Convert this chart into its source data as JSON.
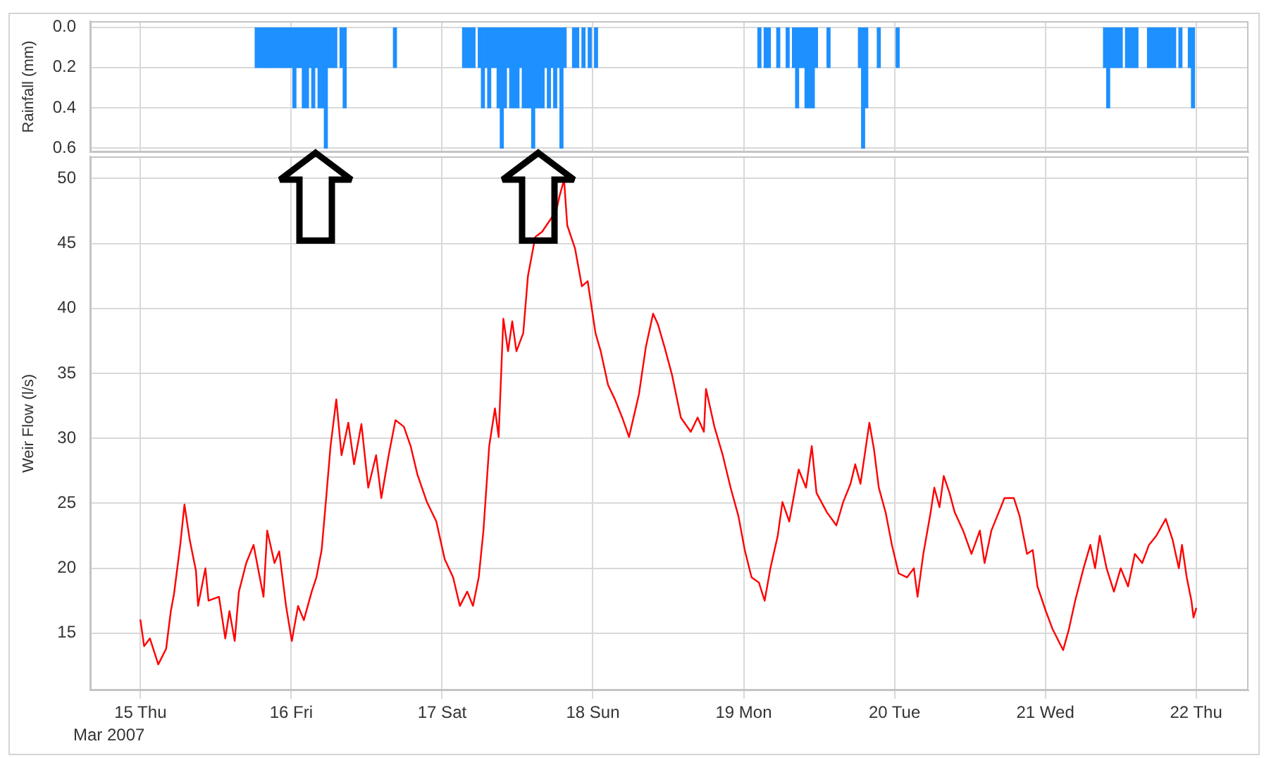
{
  "chart_data": [
    {
      "type": "bar",
      "ylabel": "Rainfall (mm)",
      "color": "#1e90ff",
      "x": [
        "2007-03-15T18:30",
        "2007-03-15T19:00",
        "2007-03-15T19:30",
        "2007-03-15T20:00",
        "2007-03-15T20:30",
        "2007-03-15T21:00",
        "2007-03-15T21:30",
        "2007-03-15T22:00",
        "2007-03-15T22:30",
        "2007-03-15T23:00",
        "2007-03-15T23:30",
        "2007-03-16T00:00",
        "2007-03-16T00:30",
        "2007-03-16T01:00",
        "2007-03-16T01:30",
        "2007-03-16T02:00",
        "2007-03-16T02:30",
        "2007-03-16T03:00",
        "2007-03-16T03:30",
        "2007-03-16T04:00",
        "2007-03-16T04:30",
        "2007-03-16T05:00",
        "2007-03-16T05:30",
        "2007-03-16T06:00",
        "2007-03-16T06:30",
        "2007-03-16T07:00",
        "2007-03-16T08:00",
        "2007-03-16T08:30",
        "2007-03-16T16:30",
        "2007-03-17T03:30",
        "2007-03-17T04:00",
        "2007-03-17T04:30",
        "2007-03-17T05:00",
        "2007-03-17T06:00",
        "2007-03-17T06:30",
        "2007-03-17T07:00",
        "2007-03-17T07:30",
        "2007-03-17T08:00",
        "2007-03-17T08:30",
        "2007-03-17T09:00",
        "2007-03-17T09:30",
        "2007-03-17T10:00",
        "2007-03-17T10:30",
        "2007-03-17T11:00",
        "2007-03-17T11:30",
        "2007-03-17T12:00",
        "2007-03-17T12:30",
        "2007-03-17T13:00",
        "2007-03-17T13:30",
        "2007-03-17T14:00",
        "2007-03-17T14:30",
        "2007-03-17T15:00",
        "2007-03-17T15:30",
        "2007-03-17T16:00",
        "2007-03-17T16:30",
        "2007-03-17T17:00",
        "2007-03-17T17:30",
        "2007-03-17T18:00",
        "2007-03-17T18:30",
        "2007-03-17T19:00",
        "2007-03-17T19:30",
        "2007-03-17T21:00",
        "2007-03-17T21:30",
        "2007-03-17T22:30",
        "2007-03-17T23:30",
        "2007-03-18T00:30",
        "2007-03-19T02:30",
        "2007-03-19T03:30",
        "2007-03-19T04:00",
        "2007-03-19T05:30",
        "2007-03-19T07:00",
        "2007-03-19T08:00",
        "2007-03-19T08:30",
        "2007-03-19T09:00",
        "2007-03-19T09:30",
        "2007-03-19T10:00",
        "2007-03-19T10:30",
        "2007-03-19T11:00",
        "2007-03-19T11:30",
        "2007-03-19T13:30",
        "2007-03-19T18:30",
        "2007-03-19T19:00",
        "2007-03-19T19:30",
        "2007-03-19T21:30",
        "2007-03-20T00:30",
        "2007-03-21T09:30",
        "2007-03-21T10:00",
        "2007-03-21T10:30",
        "2007-03-21T11:00",
        "2007-03-21T11:30",
        "2007-03-21T12:00",
        "2007-03-21T13:00",
        "2007-03-21T13:30",
        "2007-03-21T14:00",
        "2007-03-21T14:30",
        "2007-03-21T16:30",
        "2007-03-21T17:00",
        "2007-03-21T17:30",
        "2007-03-21T18:00",
        "2007-03-21T18:30",
        "2007-03-21T19:00",
        "2007-03-21T19:30",
        "2007-03-21T20:00",
        "2007-03-21T20:30",
        "2007-03-21T21:30",
        "2007-03-21T23:00",
        "2007-03-21T23:30"
      ],
      "values": [
        0.2,
        0.2,
        0.2,
        0.2,
        0.2,
        0.2,
        0.2,
        0.2,
        0.2,
        0.2,
        0.2,
        0.2,
        0.4,
        0.2,
        0.2,
        0.4,
        0.4,
        0.2,
        0.4,
        0.2,
        0.4,
        0.4,
        0.6,
        0.2,
        0.2,
        0.2,
        0.2,
        0.4,
        0.2,
        0.2,
        0.2,
        0.2,
        0.2,
        0.2,
        0.4,
        0.2,
        0.4,
        0.2,
        0.2,
        0.4,
        0.6,
        0.4,
        0.2,
        0.4,
        0.4,
        0.4,
        0.2,
        0.4,
        0.4,
        0.4,
        0.6,
        0.4,
        0.4,
        0.4,
        0.2,
        0.4,
        0.2,
        0.4,
        0.2,
        0.6,
        0.2,
        0.2,
        0.2,
        0.2,
        0.2,
        0.2,
        0.2,
        0.2,
        0.2,
        0.2,
        0.2,
        0.2,
        0.4,
        0.2,
        0.2,
        0.4,
        0.4,
        0.4,
        0.2,
        0.2,
        0.2,
        0.6,
        0.4,
        0.2,
        0.2,
        0.2,
        0.4,
        0.2,
        0.2,
        0.2,
        0.2,
        0.2,
        0.2,
        0.2,
        0.2,
        0.2,
        0.2,
        0.2,
        0.2,
        0.2,
        0.2,
        0.2,
        0.2,
        0.2,
        0.2,
        0.2,
        0.4
      ],
      "xlim": [
        "2007-03-14T16:00",
        "2007-03-22T08:20"
      ],
      "xticks": [
        {
          "value": "2007-03-15",
          "label": null
        },
        {
          "value": "2007-03-16",
          "label": null
        },
        {
          "value": "2007-03-17",
          "label": null
        },
        {
          "value": "2007-03-18",
          "label": null
        },
        {
          "value": "2007-03-19",
          "label": null
        },
        {
          "value": "2007-03-20",
          "label": null
        },
        {
          "value": "2007-03-21",
          "label": null
        },
        {
          "value": "2007-03-22",
          "label": null
        }
      ],
      "ylim": [
        0.62,
        -0.03
      ],
      "yticks": [
        {
          "value": 0,
          "label": "0.0"
        },
        {
          "value": 0.2,
          "label": "0.2"
        },
        {
          "value": 0.4,
          "label": "0.4"
        },
        {
          "value": 0.6,
          "label": "0.6"
        }
      ],
      "tick_labels": "y",
      "grid": true
    },
    {
      "type": "line",
      "ylabel": "Weir Flow (l/s)",
      "color": "#ff0000",
      "x": [
        "2007-03-15T00:00",
        "2007-03-15T00:35",
        "2007-03-15T01:30",
        "2007-03-15T02:50",
        "2007-03-15T04:05",
        "2007-03-15T04:50",
        "2007-03-15T05:20",
        "2007-03-15T06:20",
        "2007-03-15T07:00",
        "2007-03-15T07:50",
        "2007-03-15T08:50",
        "2007-03-15T09:10",
        "2007-03-15T10:20",
        "2007-03-15T10:50",
        "2007-03-15T12:30",
        "2007-03-15T13:30",
        "2007-03-15T14:10",
        "2007-03-15T15:00",
        "2007-03-15T15:40",
        "2007-03-15T16:50",
        "2007-03-15T18:00",
        "2007-03-15T19:35",
        "2007-03-15T20:10",
        "2007-03-15T21:20",
        "2007-03-15T22:05",
        "2007-03-15T23:10",
        "2007-03-16T00:05",
        "2007-03-16T01:05",
        "2007-03-16T02:00",
        "2007-03-16T03:15",
        "2007-03-16T04:00",
        "2007-03-16T04:50",
        "2007-03-16T05:30",
        "2007-03-16T06:15",
        "2007-03-16T07:10",
        "2007-03-16T08:00",
        "2007-03-16T09:05",
        "2007-03-16T10:00",
        "2007-03-16T11:10",
        "2007-03-16T12:15",
        "2007-03-16T13:30",
        "2007-03-16T14:20",
        "2007-03-16T15:30",
        "2007-03-16T16:35",
        "2007-03-16T17:55",
        "2007-03-16T19:00",
        "2007-03-16T20:05",
        "2007-03-16T21:35",
        "2007-03-16T23:05",
        "2007-03-17T00:25",
        "2007-03-17T01:45",
        "2007-03-17T02:50",
        "2007-03-17T04:00",
        "2007-03-17T04:55",
        "2007-03-17T05:50",
        "2007-03-17T06:35",
        "2007-03-17T07:30",
        "2007-03-17T08:25",
        "2007-03-17T09:00",
        "2007-03-17T09:45",
        "2007-03-17T10:30",
        "2007-03-17T11:10",
        "2007-03-17T11:50",
        "2007-03-17T12:55",
        "2007-03-17T13:40",
        "2007-03-17T14:50",
        "2007-03-17T15:55",
        "2007-03-17T18:10",
        "2007-03-17T18:40",
        "2007-03-17T19:25",
        "2007-03-17T19:55",
        "2007-03-17T21:10",
        "2007-03-17T22:15",
        "2007-03-17T23:10",
        "2007-03-18T00:25",
        "2007-03-18T01:15",
        "2007-03-18T02:25",
        "2007-03-18T03:30",
        "2007-03-18T04:40",
        "2007-03-18T05:45",
        "2007-03-18T07:20",
        "2007-03-18T08:25",
        "2007-03-18T09:35",
        "2007-03-18T10:20",
        "2007-03-18T11:25",
        "2007-03-18T12:35",
        "2007-03-18T14:00",
        "2007-03-18T15:35",
        "2007-03-18T16:40",
        "2007-03-18T17:40",
        "2007-03-18T18:00",
        "2007-03-18T19:20",
        "2007-03-18T20:40",
        "2007-03-18T21:55",
        "2007-03-18T23:10",
        "2007-03-19T00:10",
        "2007-03-19T01:15",
        "2007-03-19T02:25",
        "2007-03-19T03:20",
        "2007-03-19T04:15",
        "2007-03-19T05:25",
        "2007-03-19T06:10",
        "2007-03-19T07:15",
        "2007-03-19T08:45",
        "2007-03-19T09:55",
        "2007-03-19T10:50",
        "2007-03-19T11:35",
        "2007-03-19T13:15",
        "2007-03-19T14:45",
        "2007-03-19T15:50",
        "2007-03-19T17:00",
        "2007-03-19T17:45",
        "2007-03-19T18:35",
        "2007-03-19T20:00",
        "2007-03-19T20:45",
        "2007-03-19T21:30",
        "2007-03-19T22:35",
        "2007-03-19T23:35",
        "2007-03-20T00:40",
        "2007-03-20T02:00",
        "2007-03-20T03:05",
        "2007-03-20T03:40",
        "2007-03-20T04:35",
        "2007-03-20T05:45",
        "2007-03-20T06:20",
        "2007-03-20T07:10",
        "2007-03-20T07:50",
        "2007-03-20T08:45",
        "2007-03-20T09:35",
        "2007-03-20T10:55",
        "2007-03-20T12:15",
        "2007-03-20T13:35",
        "2007-03-20T14:20",
        "2007-03-20T15:25",
        "2007-03-20T16:35",
        "2007-03-20T17:30",
        "2007-03-20T19:00",
        "2007-03-20T19:55",
        "2007-03-20T21:05",
        "2007-03-20T22:00",
        "2007-03-20T22:45",
        "2007-03-21T00:05",
        "2007-03-21T01:10",
        "2007-03-21T02:50",
        "2007-03-21T03:45",
        "2007-03-21T04:45",
        "2007-03-21T06:05",
        "2007-03-21T07:10",
        "2007-03-21T07:55",
        "2007-03-21T08:40",
        "2007-03-21T09:45",
        "2007-03-21T10:55",
        "2007-03-21T12:00",
        "2007-03-21T13:10",
        "2007-03-21T14:15",
        "2007-03-21T15:25",
        "2007-03-21T16:30",
        "2007-03-21T17:40",
        "2007-03-21T19:10",
        "2007-03-21T20:15",
        "2007-03-21T21:15",
        "2007-03-21T21:45",
        "2007-03-21T22:30",
        "2007-03-21T23:15",
        "2007-03-21T23:35",
        "2007-03-22T00:00"
      ],
      "values": [
        16.0,
        14.0,
        14.6,
        12.6,
        13.8,
        16.7,
        18.0,
        21.8,
        24.9,
        22.2,
        19.8,
        17.1,
        20.0,
        17.5,
        17.8,
        14.6,
        16.7,
        14.4,
        18.2,
        20.4,
        21.8,
        17.8,
        22.9,
        20.4,
        21.3,
        17.1,
        14.4,
        17.1,
        16.0,
        18.2,
        19.3,
        21.4,
        25.1,
        29.4,
        33.0,
        28.7,
        31.2,
        28.0,
        31.1,
        26.2,
        28.7,
        25.4,
        28.7,
        31.4,
        30.9,
        29.4,
        27.2,
        25.1,
        23.6,
        20.7,
        19.3,
        17.1,
        18.2,
        17.1,
        19.3,
        22.9,
        29.4,
        32.3,
        30.1,
        39.2,
        36.7,
        39.0,
        36.7,
        38.1,
        42.5,
        45.5,
        45.9,
        47.5,
        48.6,
        49.9,
        46.4,
        44.6,
        41.7,
        42.1,
        38.1,
        36.7,
        34.1,
        33.0,
        31.6,
        30.1,
        33.4,
        37.0,
        39.6,
        38.8,
        37.0,
        34.9,
        31.6,
        30.5,
        31.6,
        30.5,
        33.8,
        30.9,
        28.7,
        26.2,
        24.0,
        21.4,
        19.3,
        18.9,
        17.5,
        20.0,
        22.5,
        25.1,
        23.6,
        27.6,
        26.2,
        29.4,
        25.8,
        24.3,
        23.3,
        25.1,
        26.5,
        28.0,
        26.5,
        31.2,
        29.1,
        26.2,
        24.3,
        21.8,
        19.6,
        19.3,
        20.0,
        17.8,
        21.1,
        24.3,
        26.2,
        24.7,
        27.1,
        25.8,
        24.3,
        22.9,
        21.1,
        22.9,
        20.4,
        22.9,
        24.3,
        25.4,
        25.4,
        24.0,
        21.1,
        21.4,
        18.6,
        16.7,
        15.3,
        13.7,
        15.3,
        17.5,
        20.0,
        21.8,
        20.0,
        22.5,
        20.0,
        18.2,
        20.0,
        18.6,
        21.1,
        20.4,
        21.8,
        22.5,
        23.8,
        22.2,
        20.0,
        21.8,
        19.3,
        17.5,
        16.2,
        16.9
      ],
      "xlim": [
        "2007-03-14T16:00",
        "2007-03-22T08:20"
      ],
      "xticks": [
        {
          "value": "2007-03-15",
          "label": "15 Thu"
        },
        {
          "value": "2007-03-16",
          "label": "16 Fri"
        },
        {
          "value": "2007-03-17",
          "label": "17 Sat"
        },
        {
          "value": "2007-03-18",
          "label": "18 Sun"
        },
        {
          "value": "2007-03-19",
          "label": "19 Mon"
        },
        {
          "value": "2007-03-20",
          "label": "20 Tue"
        },
        {
          "value": "2007-03-21",
          "label": "21 Wed"
        },
        {
          "value": "2007-03-22",
          "label": "22 Thu"
        }
      ],
      "ylim": [
        10.6,
        51.7
      ],
      "yticks": [
        15,
        20,
        25,
        30,
        35,
        40,
        45,
        50
      ],
      "grid": true,
      "annotations": [
        "Mar 2007"
      ]
    }
  ]
}
